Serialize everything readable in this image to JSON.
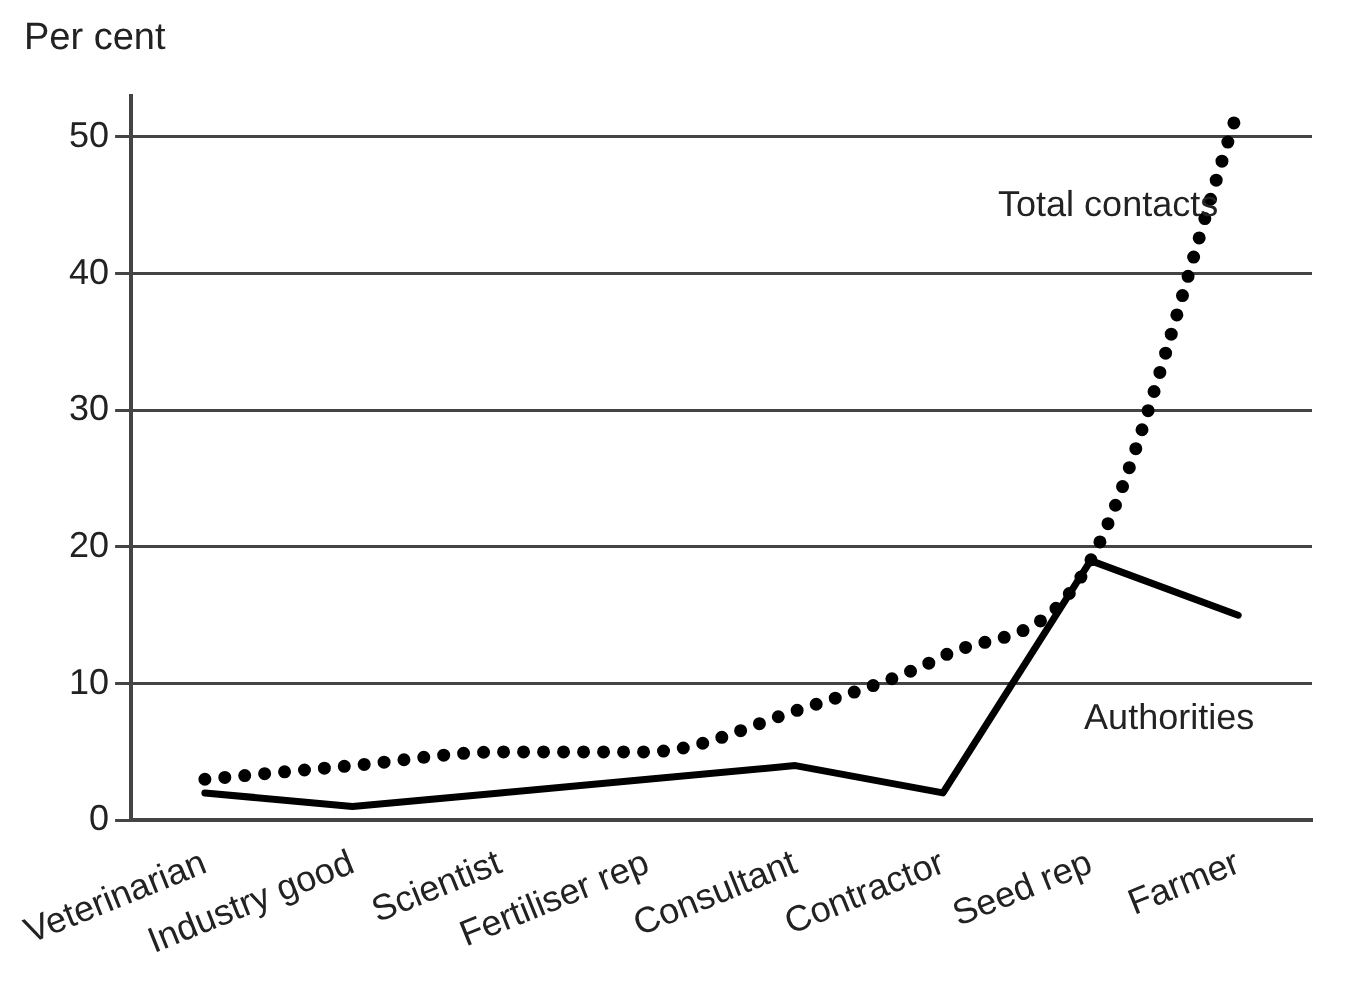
{
  "chart_data": {
    "type": "line",
    "ylabel": "Per cent",
    "categories": [
      "Veterinarian",
      "Industry good",
      "Scientist",
      "Fertiliser rep",
      "Consultant",
      "Contractor",
      "Seed rep",
      "Farmer"
    ],
    "series": [
      {
        "name": "Total contacts",
        "color": "#000000",
        "line_style": "dotted",
        "values": [
          3,
          4,
          5,
          5,
          8,
          12,
          19,
          52
        ]
      },
      {
        "name": "Authorities",
        "color": "#000000",
        "line_style": "solid",
        "values": [
          2,
          1,
          2,
          3,
          4,
          2,
          19,
          15
        ]
      }
    ],
    "ylim": [
      0,
      53
    ],
    "yticks": [
      0,
      10,
      20,
      30,
      40,
      50
    ],
    "grid": "y",
    "legend": false,
    "marker": "none"
  }
}
